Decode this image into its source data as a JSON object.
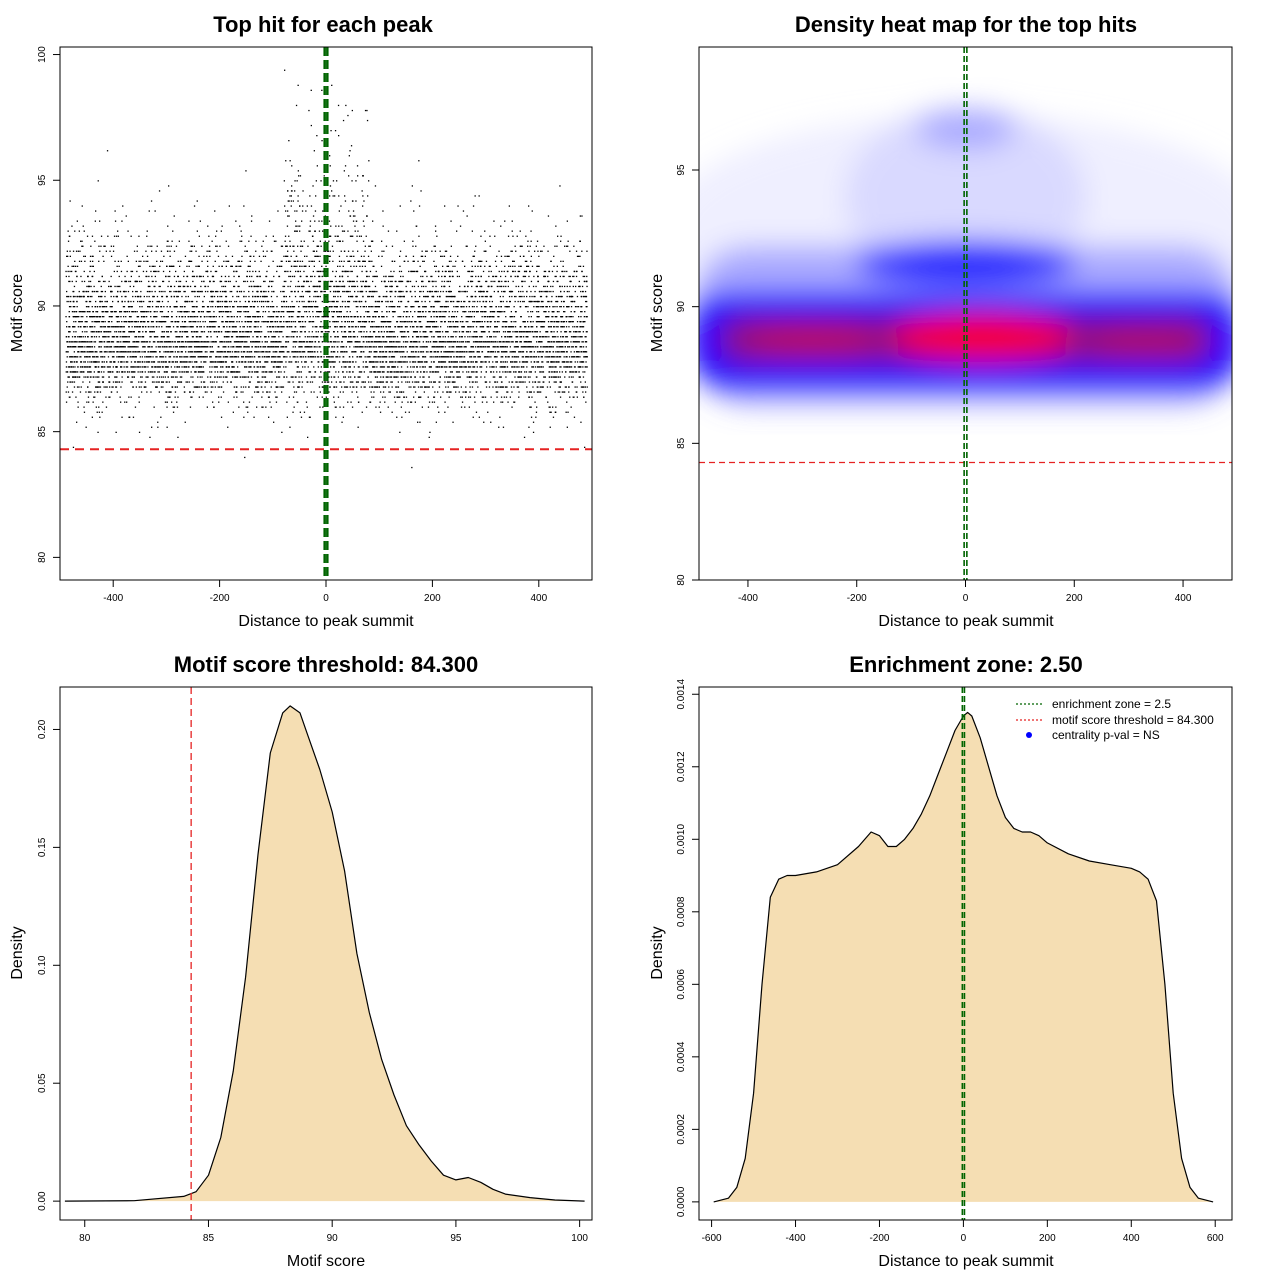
{
  "colors": {
    "point": "#000000",
    "threshold_line": "#e52222",
    "zone_line": "#006400",
    "density_fill": "#f5deb3",
    "heat_low": "#ffffff",
    "heat_mid": "#0000ff",
    "heat_high": "#ff0000",
    "centrality_marker": "#0000ff"
  },
  "chart_data": [
    {
      "type": "scatter",
      "title": "Top hit for each peak",
      "xlabel": "Distance to peak summit",
      "ylabel": "Motif score",
      "xlim": [
        -500,
        500
      ],
      "ylim": [
        79.1,
        100.3
      ],
      "xticks": [
        -400,
        -200,
        0,
        200,
        400
      ],
      "xtick_labels": [
        "-400",
        "-200",
        "0",
        "200",
        "400"
      ],
      "yticks": [
        80,
        85,
        90,
        95,
        100
      ],
      "ytick_labels": [
        "80",
        "85",
        "90",
        "95",
        "100"
      ],
      "x_range_of_points": [
        -490,
        490
      ],
      "score_distribution": {
        "mode": 88.7,
        "sd_low": 1.2,
        "sd_high": 1.9,
        "min": 82.5,
        "max": 99.8
      },
      "point_count_approx": 9000,
      "threshold_y": 84.3,
      "enrichment_zone_x": [
        -2.5,
        2.5
      ],
      "grid": false
    },
    {
      "type": "heatmap",
      "title": "Density heat map for the top hits",
      "xlabel": "Distance to peak summit",
      "ylabel": "Motif score",
      "xlim": [
        -490,
        490
      ],
      "ylim": [
        80,
        99.5
      ],
      "xticks": [
        -400,
        -200,
        0,
        200,
        400
      ],
      "xtick_labels": [
        "-400",
        "-200",
        "0",
        "200",
        "400"
      ],
      "yticks": [
        80,
        85,
        90,
        95
      ],
      "ytick_labels": [
        "80",
        "85",
        "90",
        "95"
      ],
      "color_scale": [
        "white",
        "blue",
        "red"
      ],
      "density_peak": {
        "x": 30,
        "y": 88.9
      },
      "threshold_y": 84.3,
      "enrichment_zone_x": [
        -2.5,
        2.5
      ],
      "grid": false
    },
    {
      "type": "area",
      "title": "Motif score threshold: 84.300",
      "xlabel": "Motif score",
      "ylabel": "Density",
      "xlim": [
        79.0,
        100.5
      ],
      "ylim": [
        -0.008,
        0.218
      ],
      "xticks": [
        80,
        85,
        90,
        95,
        100
      ],
      "xtick_labels": [
        "80",
        "85",
        "90",
        "95",
        "100"
      ],
      "yticks": [
        0,
        0.05,
        0.1,
        0.15,
        0.2
      ],
      "ytick_labels": [
        "0.00",
        "0.05",
        "0.10",
        "0.15",
        "0.20"
      ],
      "x": [
        79.2,
        82,
        84,
        84.5,
        85,
        85.5,
        86,
        86.5,
        87,
        87.5,
        88,
        88.3,
        88.7,
        89,
        89.5,
        90,
        90.5,
        91,
        91.5,
        92,
        92.5,
        93,
        93.5,
        94,
        94.5,
        95,
        95.5,
        96,
        96.5,
        97,
        98,
        99,
        100.2
      ],
      "y": [
        0,
        0.0002,
        0.002,
        0.004,
        0.011,
        0.027,
        0.055,
        0.095,
        0.147,
        0.19,
        0.207,
        0.21,
        0.207,
        0.198,
        0.183,
        0.165,
        0.14,
        0.105,
        0.08,
        0.06,
        0.045,
        0.032,
        0.024,
        0.017,
        0.011,
        0.009,
        0.01,
        0.008,
        0.005,
        0.003,
        0.0015,
        0.0005,
        0
      ],
      "threshold_x": 84.3,
      "grid": false
    },
    {
      "type": "area",
      "title": "Enrichment zone: 2.50",
      "xlabel": "Distance to peak summit",
      "ylabel": "Density",
      "xlim": [
        -630,
        640
      ],
      "ylim": [
        -5e-05,
        0.00142
      ],
      "xticks": [
        -600,
        -400,
        -200,
        0,
        200,
        400,
        600
      ],
      "xtick_labels": [
        "-600",
        "-400",
        "-200",
        "0",
        "200",
        "400",
        "600"
      ],
      "yticks": [
        0,
        0.0002,
        0.0004,
        0.0006,
        0.0008,
        0.001,
        0.0012,
        0.0014
      ],
      "ytick_labels": [
        "0.0000",
        "0.0002",
        "0.0004",
        "0.0006",
        "0.0008",
        "0.0010",
        "0.0012",
        "0.0014"
      ],
      "x": [
        -595,
        -560,
        -540,
        -520,
        -500,
        -480,
        -460,
        -440,
        -420,
        -400,
        -350,
        -300,
        -250,
        -220,
        -200,
        -180,
        -160,
        -140,
        -120,
        -100,
        -80,
        -60,
        -40,
        -20,
        0,
        10,
        20,
        40,
        60,
        80,
        100,
        120,
        140,
        160,
        180,
        200,
        250,
        300,
        350,
        400,
        420,
        440,
        460,
        480,
        500,
        520,
        540,
        560,
        595
      ],
      "y": [
        0,
        1e-05,
        4e-05,
        0.00012,
        0.0003,
        0.0006,
        0.00084,
        0.00089,
        0.0009,
        0.0009,
        0.00091,
        0.00093,
        0.00098,
        0.00102,
        0.00101,
        0.00098,
        0.00098,
        0.001,
        0.00103,
        0.00107,
        0.00112,
        0.00118,
        0.00124,
        0.0013,
        0.00134,
        0.00135,
        0.00134,
        0.00128,
        0.0012,
        0.00112,
        0.00106,
        0.00103,
        0.00102,
        0.00102,
        0.00101,
        0.00099,
        0.00096,
        0.00094,
        0.00093,
        0.00092,
        0.00091,
        0.00089,
        0.00083,
        0.0006,
        0.0003,
        0.00012,
        4e-05,
        1e-05,
        0
      ],
      "enrichment_zone_x": [
        -2.5,
        2.5
      ],
      "legend": {
        "position": "top-right",
        "entries": [
          "enrichment zone = 2.5",
          "motif score threshold = 84.300",
          "centrality p-val = NS"
        ]
      },
      "grid": false
    }
  ]
}
